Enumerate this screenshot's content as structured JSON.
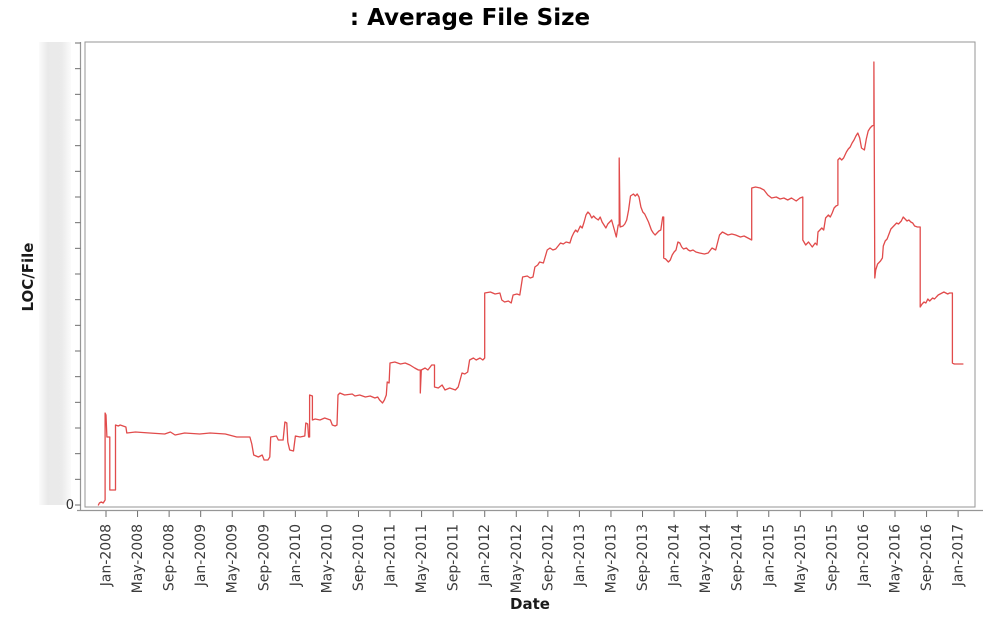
{
  "chart_data": {
    "type": "line",
    "title": ": Average File Size",
    "xlabel": "Date",
    "ylabel": "LOC/File",
    "legend": "none",
    "grid": "off",
    "line_color": "#e14b4b",
    "frame_color": "#969696",
    "tick_color": "#6e6e6e",
    "tick_label_color": "#3b3b3b",
    "x_tick_interval_months": 4,
    "x_tick_labels": [
      "Jan-2008",
      "May-2008",
      "Sep-2008",
      "Jan-2009",
      "May-2009",
      "Sep-2009",
      "Jan-2010",
      "May-2010",
      "Sep-2010",
      "Jan-2011",
      "May-2011",
      "Sep-2011",
      "Jan-2012",
      "May-2012",
      "Sep-2012",
      "Jan-2013",
      "May-2013",
      "Sep-2013",
      "Jan-2014",
      "May-2014",
      "Sep-2014",
      "Jan-2015",
      "May-2015",
      "Sep-2015",
      "Jan-2016",
      "May-2016",
      "Sep-2016",
      "Jan-2017"
    ],
    "y_axis": {
      "zero_label": "0",
      "minor_tick_count": 19,
      "scale_note": "unlabeled relative LOC/File units; only 0 is labeled"
    },
    "xlim_years": [
      2007.78,
      2017.18
    ],
    "ylim": [
      0,
      463
    ],
    "points": [
      [
        2007.92,
        0
      ],
      [
        2007.93,
        2
      ],
      [
        2007.95,
        3
      ],
      [
        2007.97,
        2
      ],
      [
        2007.99,
        5
      ],
      [
        2007.99,
        92
      ],
      [
        2008.0,
        90
      ],
      [
        2008.01,
        68
      ],
      [
        2008.04,
        68
      ],
      [
        2008.04,
        15
      ],
      [
        2008.1,
        15
      ],
      [
        2008.1,
        80
      ],
      [
        2008.13,
        79
      ],
      [
        2008.15,
        80
      ],
      [
        2008.21,
        78
      ],
      [
        2008.22,
        72
      ],
      [
        2008.31,
        73
      ],
      [
        2008.46,
        72
      ],
      [
        2008.62,
        71
      ],
      [
        2008.68,
        73
      ],
      [
        2008.73,
        70
      ],
      [
        2008.83,
        72
      ],
      [
        2008.99,
        71
      ],
      [
        2009.1,
        72
      ],
      [
        2009.26,
        71
      ],
      [
        2009.38,
        68
      ],
      [
        2009.52,
        68
      ],
      [
        2009.54,
        61
      ],
      [
        2009.56,
        50
      ],
      [
        2009.61,
        48
      ],
      [
        2009.65,
        50
      ],
      [
        2009.67,
        45
      ],
      [
        2009.71,
        45
      ],
      [
        2009.73,
        48
      ],
      [
        2009.74,
        68
      ],
      [
        2009.8,
        69
      ],
      [
        2009.82,
        65
      ],
      [
        2009.87,
        65
      ],
      [
        2009.89,
        83
      ],
      [
        2009.91,
        82
      ],
      [
        2009.92,
        63
      ],
      [
        2009.94,
        55
      ],
      [
        2009.98,
        54
      ],
      [
        2010.0,
        69
      ],
      [
        2010.05,
        68
      ],
      [
        2010.1,
        69
      ],
      [
        2010.11,
        82
      ],
      [
        2010.13,
        81
      ],
      [
        2010.14,
        68
      ],
      [
        2010.15,
        68
      ],
      [
        2010.15,
        110
      ],
      [
        2010.18,
        109
      ],
      [
        2010.18,
        85
      ],
      [
        2010.21,
        86
      ],
      [
        2010.26,
        85
      ],
      [
        2010.31,
        87
      ],
      [
        2010.37,
        85
      ],
      [
        2010.39,
        80
      ],
      [
        2010.42,
        79
      ],
      [
        2010.44,
        80
      ],
      [
        2010.45,
        110
      ],
      [
        2010.47,
        112
      ],
      [
        2010.52,
        110
      ],
      [
        2010.6,
        111
      ],
      [
        2010.63,
        109
      ],
      [
        2010.68,
        110
      ],
      [
        2010.74,
        108
      ],
      [
        2010.79,
        109
      ],
      [
        2010.84,
        107
      ],
      [
        2010.87,
        108
      ],
      [
        2010.89,
        105
      ],
      [
        2010.92,
        102
      ],
      [
        2010.94,
        105
      ],
      [
        2010.96,
        110
      ],
      [
        2010.97,
        123
      ],
      [
        2010.99,
        122
      ],
      [
        2011.0,
        142
      ],
      [
        2011.05,
        143
      ],
      [
        2011.11,
        141
      ],
      [
        2011.16,
        142
      ],
      [
        2011.21,
        140
      ],
      [
        2011.26,
        137
      ],
      [
        2011.3,
        135
      ],
      [
        2011.32,
        135
      ],
      [
        2011.32,
        112
      ],
      [
        2011.33,
        135
      ],
      [
        2011.37,
        137
      ],
      [
        2011.4,
        135
      ],
      [
        2011.44,
        140
      ],
      [
        2011.47,
        140
      ],
      [
        2011.47,
        118
      ],
      [
        2011.51,
        117
      ],
      [
        2011.55,
        120
      ],
      [
        2011.58,
        115
      ],
      [
        2011.63,
        117
      ],
      [
        2011.69,
        115
      ],
      [
        2011.72,
        118
      ],
      [
        2011.74,
        125
      ],
      [
        2011.76,
        132
      ],
      [
        2011.79,
        131
      ],
      [
        2011.82,
        133
      ],
      [
        2011.84,
        145
      ],
      [
        2011.88,
        147
      ],
      [
        2011.91,
        145
      ],
      [
        2011.95,
        147
      ],
      [
        2011.98,
        145
      ],
      [
        2012.0,
        147
      ],
      [
        2012.0,
        212
      ],
      [
        2012.06,
        213
      ],
      [
        2012.11,
        211
      ],
      [
        2012.16,
        212
      ],
      [
        2012.18,
        205
      ],
      [
        2012.21,
        203
      ],
      [
        2012.25,
        204
      ],
      [
        2012.28,
        202
      ],
      [
        2012.3,
        210
      ],
      [
        2012.34,
        211
      ],
      [
        2012.37,
        210
      ],
      [
        2012.4,
        228
      ],
      [
        2012.45,
        229
      ],
      [
        2012.48,
        227
      ],
      [
        2012.51,
        228
      ],
      [
        2012.53,
        238
      ],
      [
        2012.56,
        240
      ],
      [
        2012.58,
        243
      ],
      [
        2012.62,
        242
      ],
      [
        2012.66,
        255
      ],
      [
        2012.69,
        257
      ],
      [
        2012.72,
        255
      ],
      [
        2012.75,
        256
      ],
      [
        2012.8,
        262
      ],
      [
        2012.83,
        261
      ],
      [
        2012.86,
        263
      ],
      [
        2012.9,
        262
      ],
      [
        2012.92,
        268
      ],
      [
        2012.94,
        272
      ],
      [
        2012.96,
        275
      ],
      [
        2012.98,
        273
      ],
      [
        2013.01,
        279
      ],
      [
        2013.03,
        277
      ],
      [
        2013.05,
        283
      ],
      [
        2013.07,
        290
      ],
      [
        2013.09,
        293
      ],
      [
        2013.11,
        291
      ],
      [
        2013.13,
        287
      ],
      [
        2013.15,
        289
      ],
      [
        2013.17,
        287
      ],
      [
        2013.2,
        285
      ],
      [
        2013.22,
        288
      ],
      [
        2013.24,
        283
      ],
      [
        2013.26,
        280
      ],
      [
        2013.28,
        277
      ],
      [
        2013.3,
        281
      ],
      [
        2013.32,
        283
      ],
      [
        2013.34,
        285
      ],
      [
        2013.37,
        275
      ],
      [
        2013.39,
        268
      ],
      [
        2013.41,
        280
      ],
      [
        2013.42,
        280
      ],
      [
        2013.42,
        347
      ],
      [
        2013.43,
        278
      ],
      [
        2013.46,
        279
      ],
      [
        2013.48,
        281
      ],
      [
        2013.5,
        285
      ],
      [
        2013.52,
        295
      ],
      [
        2013.54,
        309
      ],
      [
        2013.57,
        311
      ],
      [
        2013.59,
        309
      ],
      [
        2013.61,
        311
      ],
      [
        2013.63,
        308
      ],
      [
        2013.65,
        298
      ],
      [
        2013.67,
        293
      ],
      [
        2013.69,
        291
      ],
      [
        2013.71,
        287
      ],
      [
        2013.73,
        283
      ],
      [
        2013.76,
        275
      ],
      [
        2013.78,
        272
      ],
      [
        2013.8,
        270
      ],
      [
        2013.82,
        272
      ],
      [
        2013.84,
        274
      ],
      [
        2013.86,
        275
      ],
      [
        2013.88,
        288
      ],
      [
        2013.89,
        288
      ],
      [
        2013.89,
        247
      ],
      [
        2013.91,
        246
      ],
      [
        2013.94,
        243
      ],
      [
        2013.96,
        245
      ],
      [
        2013.98,
        250
      ],
      [
        2014.0,
        253
      ],
      [
        2014.02,
        255
      ],
      [
        2014.04,
        263
      ],
      [
        2014.06,
        262
      ],
      [
        2014.08,
        258
      ],
      [
        2014.1,
        256
      ],
      [
        2014.13,
        257
      ],
      [
        2014.15,
        255
      ],
      [
        2014.17,
        254
      ],
      [
        2014.2,
        255
      ],
      [
        2014.23,
        253
      ],
      [
        2014.27,
        252
      ],
      [
        2014.32,
        251
      ],
      [
        2014.36,
        252
      ],
      [
        2014.4,
        257
      ],
      [
        2014.44,
        255
      ],
      [
        2014.48,
        270
      ],
      [
        2014.51,
        273
      ],
      [
        2014.53,
        272
      ],
      [
        2014.57,
        270
      ],
      [
        2014.61,
        271
      ],
      [
        2014.65,
        270
      ],
      [
        2014.7,
        268
      ],
      [
        2014.74,
        269
      ],
      [
        2014.78,
        267
      ],
      [
        2014.82,
        265
      ],
      [
        2014.82,
        317
      ],
      [
        2014.86,
        318
      ],
      [
        2014.91,
        317
      ],
      [
        2014.95,
        315
      ],
      [
        2014.99,
        310
      ],
      [
        2015.03,
        307
      ],
      [
        2015.08,
        308
      ],
      [
        2015.12,
        306
      ],
      [
        2015.16,
        307
      ],
      [
        2015.2,
        305
      ],
      [
        2015.24,
        307
      ],
      [
        2015.29,
        304
      ],
      [
        2015.33,
        307
      ],
      [
        2015.36,
        308
      ],
      [
        2015.36,
        265
      ],
      [
        2015.39,
        260
      ],
      [
        2015.42,
        263
      ],
      [
        2015.46,
        258
      ],
      [
        2015.49,
        262
      ],
      [
        2015.51,
        260
      ],
      [
        2015.52,
        273
      ],
      [
        2015.54,
        275
      ],
      [
        2015.56,
        277
      ],
      [
        2015.58,
        275
      ],
      [
        2015.6,
        287
      ],
      [
        2015.63,
        290
      ],
      [
        2015.65,
        288
      ],
      [
        2015.67,
        292
      ],
      [
        2015.69,
        297
      ],
      [
        2015.71,
        299
      ],
      [
        2015.73,
        300
      ],
      [
        2015.73,
        345
      ],
      [
        2015.75,
        347
      ],
      [
        2015.77,
        345
      ],
      [
        2015.79,
        347
      ],
      [
        2015.82,
        353
      ],
      [
        2015.84,
        356
      ],
      [
        2015.86,
        358
      ],
      [
        2015.88,
        362
      ],
      [
        2015.9,
        365
      ],
      [
        2015.92,
        369
      ],
      [
        2015.94,
        372
      ],
      [
        2015.96,
        367
      ],
      [
        2015.98,
        357
      ],
      [
        2016.01,
        355
      ],
      [
        2016.03,
        366
      ],
      [
        2016.05,
        374
      ],
      [
        2016.07,
        377
      ],
      [
        2016.09,
        379
      ],
      [
        2016.11,
        380
      ],
      [
        2016.11,
        443
      ],
      [
        2016.12,
        227
      ],
      [
        2016.13,
        235
      ],
      [
        2016.15,
        241
      ],
      [
        2016.18,
        244
      ],
      [
        2016.2,
        247
      ],
      [
        2016.21,
        259
      ],
      [
        2016.23,
        264
      ],
      [
        2016.25,
        266
      ],
      [
        2016.27,
        271
      ],
      [
        2016.29,
        276
      ],
      [
        2016.31,
        278
      ],
      [
        2016.33,
        280
      ],
      [
        2016.35,
        282
      ],
      [
        2016.37,
        281
      ],
      [
        2016.4,
        284
      ],
      [
        2016.42,
        288
      ],
      [
        2016.44,
        286
      ],
      [
        2016.46,
        284
      ],
      [
        2016.48,
        285
      ],
      [
        2016.5,
        283
      ],
      [
        2016.52,
        282
      ],
      [
        2016.54,
        279
      ],
      [
        2016.57,
        278
      ],
      [
        2016.59,
        278
      ],
      [
        2016.6,
        278
      ],
      [
        2016.6,
        198
      ],
      [
        2016.62,
        201
      ],
      [
        2016.64,
        203
      ],
      [
        2016.66,
        202
      ],
      [
        2016.68,
        206
      ],
      [
        2016.7,
        204
      ],
      [
        2016.73,
        207
      ],
      [
        2016.75,
        206
      ],
      [
        2016.77,
        208
      ],
      [
        2016.79,
        210
      ],
      [
        2016.81,
        211
      ],
      [
        2016.83,
        212
      ],
      [
        2016.85,
        213
      ],
      [
        2016.87,
        212
      ],
      [
        2016.89,
        211
      ],
      [
        2016.91,
        212
      ],
      [
        2016.94,
        212
      ],
      [
        2016.94,
        142
      ],
      [
        2016.96,
        141
      ],
      [
        2017.0,
        141
      ],
      [
        2017.05,
        141
      ]
    ]
  }
}
